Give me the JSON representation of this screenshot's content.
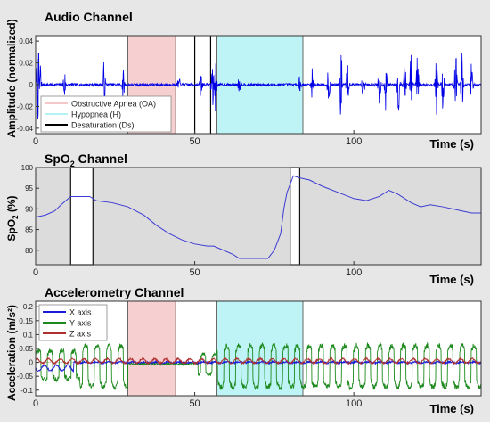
{
  "colors": {
    "figure_bg": "#e7e7e7",
    "audio": "#0000e6",
    "spo2": "#3b3bd4",
    "oa": "#f4c8c8",
    "h": "#b4f2f6",
    "ds": "#000000",
    "x_axis": "#1a1ad8",
    "y_axis": "#1e8a1e",
    "z_axis": "#b03030"
  },
  "chart_data": [
    {
      "type": "line",
      "title": "Audio Channel",
      "xlabel": "Time (s)",
      "ylabel": "Amplitude (normalized)",
      "xlim": [
        0,
        140
      ],
      "ylim": [
        -0.045,
        0.045
      ],
      "xticks": [
        0,
        50,
        100
      ],
      "yticks": [
        0.04,
        0.02,
        0,
        -0.02,
        -0.04
      ],
      "ytick_labels": [
        "0.04",
        "0.02",
        "0",
        "-0.02",
        "-0.04"
      ],
      "events": [
        {
          "type": "OA",
          "start": 29,
          "end": 44
        },
        {
          "type": "H",
          "start": 57,
          "end": 84
        },
        {
          "type": "Ds",
          "at": 50
        },
        {
          "type": "Ds",
          "at": 55
        }
      ],
      "legend": {
        "position": "bottom-left",
        "items": [
          {
            "label": "Obstructive Apnea (OA)",
            "color": "#f4c8c8"
          },
          {
            "label": "Hypopnea (H)",
            "color": "#b4f2f6"
          },
          {
            "label": "Desaturation (Ds)",
            "color": "#000000"
          }
        ]
      },
      "series": [
        {
          "bursts": [
            {
              "t": 0.6,
              "amp": 0.035
            },
            {
              "t": 1.3,
              "amp": 0.042
            },
            {
              "t": 9,
              "amp": 0.016
            },
            {
              "t": 21.5,
              "amp": 0.022
            },
            {
              "t": 27.5,
              "amp": 0.014
            },
            {
              "t": 45,
              "amp": 0.008
            },
            {
              "t": 52,
              "amp": 0.016
            },
            {
              "t": 55.5,
              "amp": 0.03
            },
            {
              "t": 56.5,
              "amp": 0.025
            },
            {
              "t": 64,
              "amp": 0.008
            },
            {
              "t": 83,
              "amp": 0.012
            },
            {
              "t": 87,
              "amp": 0.015
            },
            {
              "t": 92,
              "amp": 0.03
            },
            {
              "t": 96,
              "amp": 0.04
            },
            {
              "t": 98,
              "amp": 0.022
            },
            {
              "t": 103,
              "amp": 0.02
            },
            {
              "t": 108,
              "amp": 0.032
            },
            {
              "t": 110,
              "amp": 0.026
            },
            {
              "t": 114,
              "amp": 0.028
            },
            {
              "t": 116,
              "amp": 0.026
            },
            {
              "t": 118,
              "amp": 0.03
            },
            {
              "t": 120,
              "amp": 0.035
            },
            {
              "t": 126,
              "amp": 0.03
            },
            {
              "t": 128,
              "amp": 0.024
            },
            {
              "t": 132,
              "amp": 0.034
            },
            {
              "t": 134,
              "amp": 0.03
            },
            {
              "t": 137,
              "amp": 0.028
            }
          ]
        }
      ]
    },
    {
      "type": "line",
      "title_main": "SpO",
      "title_sub": "2",
      "title_rest": " Channel",
      "xlabel": "Time (s)",
      "ylabel_main": "SpO",
      "ylabel_sub": "2",
      "ylabel_rest": " (%)",
      "xlim": [
        0,
        140
      ],
      "ylim": [
        76.5,
        100
      ],
      "xticks": [
        0,
        50,
        100
      ],
      "yticks": [
        80,
        85,
        90,
        95,
        100
      ],
      "events": [
        {
          "type": "Ds",
          "start": 11,
          "end": 18
        },
        {
          "type": "Ds",
          "start": 80,
          "end": 83
        }
      ],
      "series": [
        {
          "x": [
            0,
            3,
            6,
            8,
            11,
            17,
            19,
            24,
            29,
            34,
            38,
            42,
            46,
            50,
            54,
            56,
            59,
            62,
            64,
            66,
            70,
            73,
            75,
            77,
            78,
            79,
            81,
            83,
            86,
            90,
            95,
            100,
            104,
            108,
            111,
            114,
            118,
            121,
            124,
            128,
            131,
            134,
            137,
            140
          ],
          "y": [
            88,
            88.5,
            89.5,
            91,
            93,
            93,
            92,
            91.5,
            90.5,
            88.5,
            86,
            84,
            82.5,
            81.5,
            81,
            81,
            80,
            79,
            78,
            78,
            78,
            78,
            80,
            84,
            90,
            94,
            98,
            97.5,
            97,
            95.5,
            94,
            92.5,
            92,
            93,
            94.5,
            93.5,
            91.5,
            90.5,
            91,
            90.5,
            90,
            89.5,
            89,
            89
          ]
        }
      ]
    },
    {
      "type": "line",
      "title": "Accelerometry Channel",
      "xlabel": "Time (s)",
      "ylabel": "Acceleration (m/s²)",
      "xlim": [
        0,
        140
      ],
      "ylim": [
        -0.12,
        0.22
      ],
      "xticks": [
        0,
        50,
        100
      ],
      "yticks": [
        0.2,
        0.15,
        0.1,
        0.05,
        0,
        -0.05,
        -0.1
      ],
      "ytick_labels": [
        "0.2",
        "0.15",
        "0.1",
        "0.05",
        "0",
        "-0.05",
        "-0.1"
      ],
      "events": [
        {
          "type": "OA",
          "start": 29,
          "end": 44
        },
        {
          "type": "H",
          "start": 57,
          "end": 84
        }
      ],
      "legend": {
        "position": "top-left",
        "items": [
          {
            "label": "X axis",
            "color": "#1a1ad8"
          },
          {
            "label": "Y axis",
            "color": "#1e8a1e"
          },
          {
            "label": "Z axis",
            "color": "#b03030"
          }
        ]
      },
      "series": [
        {
          "name": "X axis",
          "note": "near zero; dip to about -0.03 around 0–12 s",
          "baseline": 0,
          "period": 3.7
        },
        {
          "name": "Y axis",
          "period": 3.7,
          "high": 0.07,
          "low": -0.1,
          "flat_range": [
            29,
            51
          ]
        },
        {
          "name": "Z axis",
          "baseline": 0.005,
          "period": 3.7
        }
      ]
    }
  ]
}
